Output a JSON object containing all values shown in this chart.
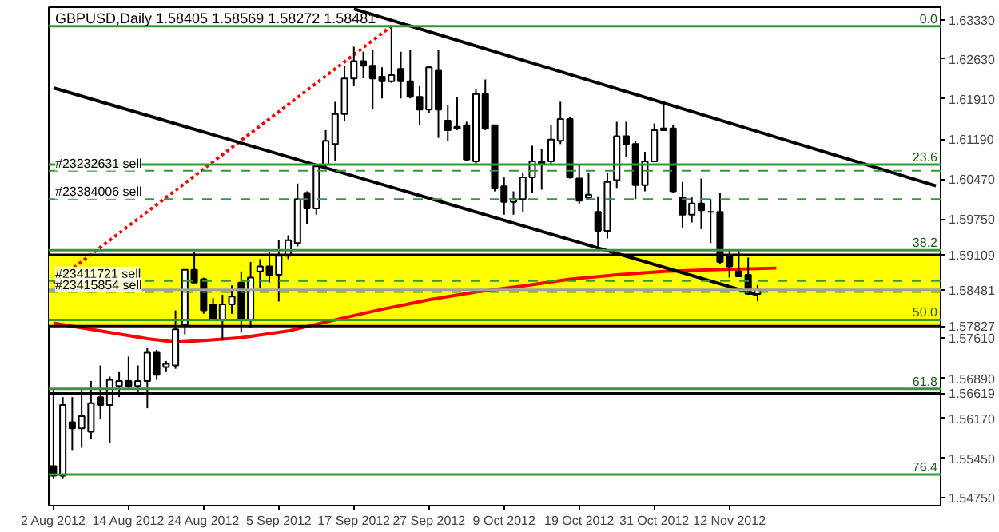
{
  "chart_data": {
    "type": "candlestick",
    "title": "GBPUSD,Daily  1.58405 1.58569 1.58272 1.58481",
    "categories": [
      "2 Aug 2012",
      null,
      null,
      null,
      null,
      null,
      null,
      null,
      "14 Aug 2012",
      null,
      null,
      null,
      null,
      null,
      null,
      null,
      "24 Aug 2012",
      null,
      null,
      null,
      null,
      null,
      null,
      null,
      "5 Sep 2012",
      null,
      null,
      null,
      null,
      null,
      null,
      null,
      "17 Sep 2012",
      null,
      null,
      null,
      null,
      null,
      null,
      null,
      "27 Sep 2012",
      null,
      null,
      null,
      null,
      null,
      null,
      null,
      "9 Oct 2012",
      null,
      null,
      null,
      null,
      null,
      null,
      null,
      "19 Oct 2012",
      null,
      null,
      null,
      null,
      null,
      null,
      null,
      "31 Oct 2012",
      null,
      null,
      null,
      null,
      null,
      null,
      null,
      "12 Nov 2012",
      null,
      null,
      null,
      null,
      null,
      null,
      null,
      null,
      null,
      null,
      null,
      null,
      null,
      null,
      null,
      null,
      null,
      null,
      null,
      null,
      null,
      null
    ],
    "ohlc": [
      [
        1.5531,
        1.5669,
        1.5508,
        1.5514
      ],
      [
        1.5514,
        1.5655,
        1.5508,
        1.5641
      ],
      [
        1.561,
        1.5655,
        1.556,
        1.5599
      ],
      [
        1.5599,
        1.5669,
        1.5564,
        1.5621
      ],
      [
        1.5593,
        1.5684,
        1.5579,
        1.5644
      ],
      [
        1.5655,
        1.5712,
        1.5616,
        1.5641
      ],
      [
        1.5641,
        1.5692,
        1.5572,
        1.5686
      ],
      [
        1.5675,
        1.57,
        1.5655,
        1.5684
      ],
      [
        1.5684,
        1.5728,
        1.5669,
        1.5675
      ],
      [
        1.5675,
        1.5712,
        1.5658,
        1.5684
      ],
      [
        1.5684,
        1.5743,
        1.5635,
        1.5735
      ],
      [
        1.5735,
        1.574,
        1.5686,
        1.5695
      ],
      [
        1.5709,
        1.572,
        1.57,
        1.5715
      ],
      [
        1.5712,
        1.5811,
        1.5706,
        1.5777
      ],
      [
        1.5785,
        1.5884,
        1.5768,
        1.5884
      ],
      [
        1.5884,
        1.5915,
        1.5861,
        1.5861
      ],
      [
        1.5867,
        1.587,
        1.5805,
        1.5811
      ],
      [
        1.5822,
        1.5833,
        1.5794,
        1.5794
      ],
      [
        1.5794,
        1.5839,
        1.5757,
        1.5822
      ],
      [
        1.5822,
        1.5856,
        1.5805,
        1.5836
      ],
      [
        1.5861,
        1.5881,
        1.5771,
        1.5794
      ],
      [
        1.5794,
        1.5898,
        1.578,
        1.587
      ],
      [
        1.5881,
        1.5903,
        1.5852,
        1.589
      ],
      [
        1.589,
        1.5915,
        1.5861,
        1.5875
      ],
      [
        1.5875,
        1.5937,
        1.5827,
        1.5909
      ],
      [
        1.5909,
        1.5946,
        1.5903,
        1.5937
      ],
      [
        1.5932,
        1.6039,
        1.5926,
        1.6011
      ],
      [
        1.6022,
        1.6025,
        1.5966,
        1.5994
      ],
      [
        1.5994,
        1.6073,
        1.5983,
        1.607
      ],
      [
        1.6073,
        1.6135,
        1.6064,
        1.6116
      ],
      [
        1.611,
        1.6186,
        1.6079,
        1.6164
      ],
      [
        1.6164,
        1.6251,
        1.6152,
        1.6228
      ],
      [
        1.6228,
        1.6285,
        1.6214,
        1.6259
      ],
      [
        1.6259,
        1.6276,
        1.6228,
        1.6251
      ],
      [
        1.6251,
        1.6279,
        1.6172,
        1.6228
      ],
      [
        1.6231,
        1.6248,
        1.6192,
        1.6223
      ],
      [
        1.6223,
        1.6322,
        1.622,
        1.6234
      ],
      [
        1.6245,
        1.6276,
        1.6192,
        1.6223
      ],
      [
        1.6223,
        1.6279,
        1.6192,
        1.6195
      ],
      [
        1.6195,
        1.6214,
        1.6144,
        1.6172
      ],
      [
        1.6172,
        1.6251,
        1.6166,
        1.6248
      ],
      [
        1.6242,
        1.6279,
        1.6121,
        1.6172
      ],
      [
        1.6152,
        1.618,
        1.6116,
        1.6135
      ],
      [
        1.6141,
        1.6195,
        1.6135,
        1.6138
      ],
      [
        1.6144,
        1.615,
        1.6079,
        1.6082
      ],
      [
        1.6079,
        1.6209,
        1.6073,
        1.62
      ],
      [
        1.62,
        1.6226,
        1.6135,
        1.6138
      ],
      [
        1.6144,
        1.6144,
        1.6025,
        1.6031
      ],
      [
        1.6034,
        1.605,
        1.5983,
        1.6006
      ],
      [
        1.6006,
        1.6025,
        1.5983,
        1.6011
      ],
      [
        1.6011,
        1.6059,
        1.5988,
        1.605
      ],
      [
        1.605,
        1.6107,
        1.6022,
        1.6079
      ],
      [
        1.6079,
        1.6101,
        1.6028,
        1.6073
      ],
      [
        1.6079,
        1.6144,
        1.6073,
        1.6118
      ],
      [
        1.6116,
        1.6186,
        1.611,
        1.6155
      ],
      [
        1.6155,
        1.6158,
        1.6048,
        1.605
      ],
      [
        1.6048,
        1.6073,
        1.6003,
        1.6008
      ],
      [
        1.6014,
        1.6059,
        1.6011,
        1.6019
      ],
      [
        1.5988,
        1.6016,
        1.5923,
        1.5954
      ],
      [
        1.5954,
        1.6059,
        1.594,
        1.6042
      ],
      [
        1.6045,
        1.615,
        1.6031,
        1.6124
      ],
      [
        1.6124,
        1.615,
        1.6087,
        1.611
      ],
      [
        1.611,
        1.6116,
        1.6011,
        1.6036
      ],
      [
        1.6036,
        1.6096,
        1.6025,
        1.6079
      ],
      [
        1.6079,
        1.6147,
        1.6079,
        1.6135
      ],
      [
        1.6138,
        1.6186,
        1.6135,
        1.6135
      ],
      [
        1.6138,
        1.6144,
        1.6022,
        1.6025
      ],
      [
        1.6014,
        1.6042,
        1.596,
        1.5983
      ],
      [
        1.5983,
        1.6014,
        1.5969,
        1.6003
      ],
      [
        1.6003,
        1.6048,
        1.5957,
        1.5991
      ],
      [
        1.5988,
        1.6011,
        1.5932,
        1.5988
      ],
      [
        1.5988,
        1.6022,
        1.5895,
        1.5898
      ],
      [
        1.5909,
        1.592,
        1.587,
        1.589
      ],
      [
        1.5881,
        1.592,
        1.5872,
        1.5872
      ],
      [
        1.5875,
        1.5906,
        1.5839,
        1.5841
      ],
      [
        1.58405,
        1.58569,
        1.58272,
        1.58481
      ],
      null,
      null,
      null,
      null,
      null,
      null,
      null,
      null,
      null,
      null,
      null,
      null,
      null,
      null,
      null,
      null,
      null,
      null,
      null
    ],
    "ylim": [
      1.546,
      1.6356
    ],
    "yticks": [
      {
        "value": 1.6333,
        "label": "1.63330"
      },
      {
        "value": 1.6263,
        "label": "1.62630"
      },
      {
        "value": 1.6191,
        "label": "1.61910"
      },
      {
        "value": 1.6119,
        "label": "1.61190"
      },
      {
        "value": 1.6047,
        "label": "1.60470"
      },
      {
        "value": 1.5975,
        "label": "1.59750"
      },
      1.59109,
      1.58481,
      1.57827,
      {
        "value": 1.5761,
        "label": "1.57610"
      },
      {
        "value": 1.5689,
        "label": "1.56890"
      },
      1.56619,
      {
        "value": 1.5617,
        "label": "1.56170"
      },
      {
        "value": 1.5545,
        "label": "1.55450"
      },
      {
        "value": 1.5475,
        "label": "1.54750"
      }
    ],
    "bands": [
      {
        "axis": "y",
        "from": 1.57827,
        "to": 1.59109,
        "color": "#ffff00"
      }
    ],
    "annotations": [
      {
        "text": "0.0",
        "y": 1.6322
      },
      {
        "text": "23.6",
        "y": 1.6073
      },
      {
        "text": "38.2",
        "y": 1.5919
      },
      {
        "text": "50.0",
        "y": 1.5794
      },
      {
        "text": "61.8",
        "y": 1.567
      },
      {
        "text": "76.4",
        "y": 1.5516
      }
    ],
    "ref_lines": [
      {
        "axis": "y",
        "value": 1.6322,
        "label": null,
        "color": "#339933"
      },
      {
        "axis": "y",
        "value": 1.6073,
        "label": null,
        "color": "#339933"
      },
      {
        "axis": "y",
        "value": 1.5919,
        "label": null,
        "color": "#339933"
      },
      {
        "axis": "y",
        "value": 1.5794,
        "label": null,
        "color": "#339933"
      },
      {
        "axis": "y",
        "value": 1.567,
        "label": null,
        "color": "#339933"
      },
      {
        "axis": "y",
        "value": 1.5516,
        "label": null,
        "color": "#339933"
      },
      {
        "axis": "y",
        "value": 1.59109,
        "label": null,
        "color": "#000000"
      },
      {
        "axis": "y",
        "value": 1.57827,
        "label": null,
        "color": "#000000"
      },
      {
        "axis": "y",
        "value": 1.56619,
        "label": null,
        "color": "#000000"
      },
      {
        "axis": "y",
        "value": 1.58481,
        "label": null,
        "color": "#a0a0a0"
      },
      {
        "axis": "y",
        "value": 1.6062,
        "label": "#23232631 sell",
        "color": "#339933",
        "line_style": "dashed"
      },
      {
        "axis": "y",
        "value": 1.6011,
        "label": "#23384006 sell",
        "color": "#339933",
        "line_style": "dashed"
      },
      {
        "axis": "y",
        "value": 1.5864,
        "label": "#23411721 sell",
        "color": "#339933",
        "line_style": "dashed"
      },
      {
        "axis": "y",
        "value": 1.5844,
        "label": "#23415854 sell",
        "color": "#339933",
        "line_style": "dashed"
      }
    ],
    "series": [
      {
        "type": "line",
        "color": "#ff0000",
        "values": [
          1.5788,
          null,
          null,
          null,
          null,
          1.5774,
          null,
          null,
          null,
          null,
          1.576,
          null,
          null,
          1.5754,
          null,
          null,
          1.5757,
          null,
          null,
          null,
          1.5762,
          null,
          null,
          null,
          null,
          1.5774,
          null,
          null,
          null,
          null,
          1.5794,
          null,
          null,
          null,
          null,
          1.5813,
          null,
          null,
          null,
          null,
          1.583,
          null,
          null,
          null,
          null,
          1.5844,
          null,
          null,
          null,
          null,
          1.5855,
          null,
          null,
          null,
          null,
          1.5867,
          null,
          null,
          null,
          null,
          1.5875,
          null,
          null,
          null,
          null,
          1.5881,
          null,
          null,
          null,
          null,
          1.5884,
          null,
          null,
          null,
          null,
          null,
          null,
          1.5887,
          null,
          null,
          null,
          null,
          null,
          null,
          null,
          null,
          null,
          null,
          null,
          null,
          null,
          null,
          null,
          null,
          null
        ]
      },
      {
        "type": "line",
        "color": "#ff0000",
        "line_style": "dotted",
        "values": [
          1.586,
          null,
          null,
          null,
          null,
          null,
          null,
          null,
          null,
          null,
          null,
          null,
          null,
          null,
          null,
          null,
          null,
          null,
          null,
          null,
          null,
          null,
          null,
          null,
          null,
          null,
          null,
          null,
          null,
          null,
          null,
          null,
          null,
          null,
          null,
          null,
          1.6322,
          null,
          null,
          null,
          null,
          null,
          null,
          null,
          null,
          null,
          null,
          null,
          null,
          null,
          null,
          null,
          null,
          null,
          null,
          null,
          null,
          null,
          null,
          null,
          null,
          null,
          null,
          null,
          null,
          null,
          null,
          null,
          null,
          null,
          null,
          null,
          null,
          null,
          null,
          null,
          null,
          null,
          null,
          null,
          null,
          null,
          null,
          null,
          null,
          null,
          null,
          null,
          null,
          null,
          null,
          null,
          null,
          null,
          null
        ]
      },
      {
        "type": "line",
        "color": "#000000",
        "values": [
          1.6211,
          null,
          null,
          null,
          null,
          null,
          null,
          null,
          null,
          null,
          null,
          null,
          null,
          null,
          null,
          null,
          null,
          null,
          null,
          null,
          null,
          null,
          null,
          null,
          null,
          null,
          null,
          null,
          null,
          null,
          null,
          null,
          null,
          null,
          null,
          null,
          null,
          null,
          null,
          null,
          null,
          null,
          null,
          null,
          null,
          null,
          null,
          null,
          null,
          null,
          null,
          null,
          null,
          null,
          null,
          null,
          null,
          null,
          null,
          null,
          null,
          null,
          null,
          null,
          null,
          null,
          null,
          null,
          null,
          null,
          null,
          null,
          null,
          null,
          null,
          1.5839,
          null,
          null,
          null,
          null,
          null,
          null,
          null,
          null,
          null,
          null,
          null,
          null,
          null,
          null,
          null,
          null,
          null,
          null,
          null
        ]
      },
      {
        "type": "line",
        "color": "#000000",
        "values": [
          null,
          null,
          null,
          null,
          null,
          null,
          null,
          null,
          null,
          null,
          null,
          null,
          null,
          null,
          null,
          null,
          null,
          null,
          null,
          null,
          null,
          null,
          null,
          null,
          null,
          null,
          null,
          null,
          null,
          null,
          null,
          null,
          1.6353,
          null,
          null,
          null,
          null,
          null,
          null,
          null,
          null,
          null,
          null,
          null,
          null,
          null,
          null,
          null,
          null,
          null,
          null,
          null,
          null,
          null,
          null,
          null,
          null,
          null,
          null,
          null,
          null,
          null,
          null,
          null,
          null,
          null,
          null,
          null,
          null,
          null,
          null,
          null,
          null,
          null,
          null,
          null,
          null,
          null,
          null,
          null,
          null,
          null,
          null,
          null,
          null,
          null,
          null,
          null,
          null,
          null,
          null,
          null,
          null,
          null,
          1.6035
        ]
      }
    ]
  }
}
